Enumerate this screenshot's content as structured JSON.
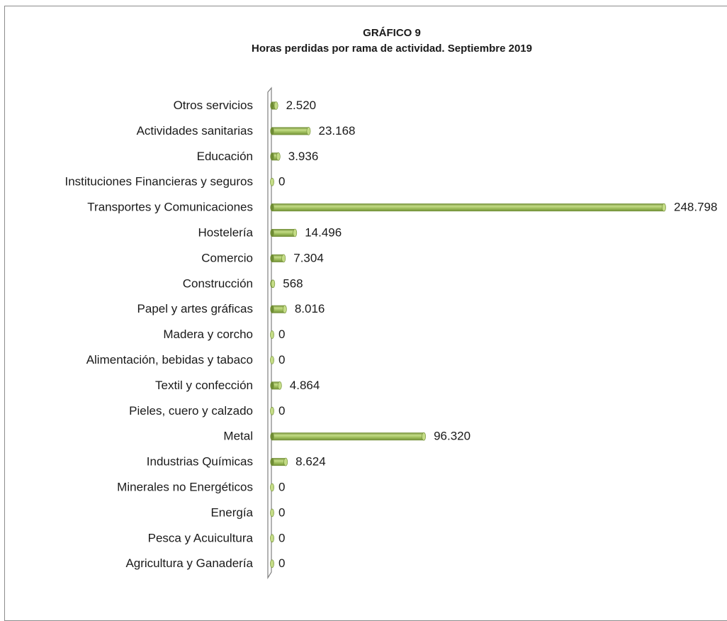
{
  "colors": {
    "bar_fill": "#9bbb59",
    "bar_dark": "#6f8c35",
    "bar_light": "#c4dc86",
    "frame_border": "#8c8c8c",
    "wall_border": "#7f7f7f"
  },
  "chart_data": {
    "type": "bar",
    "orientation": "horizontal",
    "style": "3d-cylinder",
    "title": "GRÁFICO 9",
    "subtitle": "Horas perdidas por rama de actividad. Septiembre 2019",
    "xlabel": "",
    "ylabel": "",
    "grid": false,
    "legend": "none",
    "xlim": [
      0,
      248798
    ],
    "categories": [
      "Agricultura y Ganadería",
      "Pesca y Acuicultura",
      "Energía",
      "Minerales no Energéticos",
      "Industrias Químicas",
      "Metal",
      "Pieles, cuero y calzado",
      "Textil y confección",
      "Alimentación, bebidas y tabaco",
      "Madera y corcho",
      "Papel y artes gráficas",
      "Construcción",
      "Comercio",
      "Hostelería",
      "Transportes y Comunicaciones",
      "Instituciones Financieras y seguros",
      "Educación",
      "Actividades sanitarias",
      "Otros servicios"
    ],
    "values": [
      0,
      0,
      0,
      0,
      8624,
      96320,
      0,
      4864,
      0,
      0,
      8016,
      568,
      7304,
      14496,
      248798,
      0,
      3936,
      23168,
      2520
    ],
    "value_labels": [
      "0",
      "0",
      "0",
      "0",
      "8.624",
      "96.320",
      "0",
      "4.864",
      "0",
      "0",
      "8.016",
      "568",
      "7.304",
      "14.496",
      "248.798",
      "0",
      "3.936",
      "23.168",
      "2.520"
    ]
  }
}
